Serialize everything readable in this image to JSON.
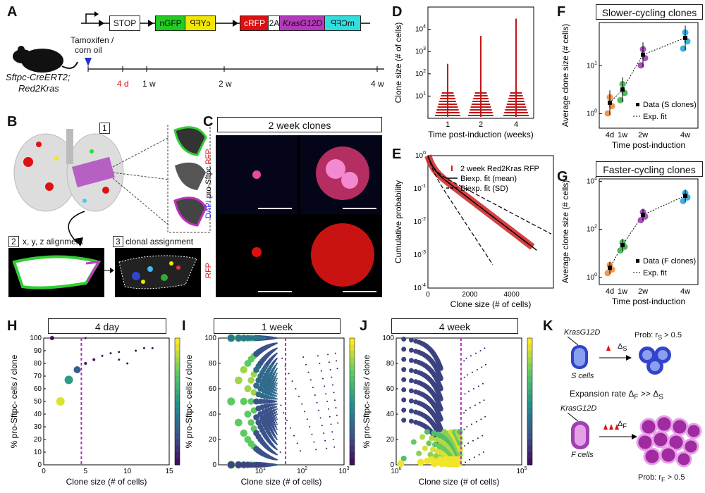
{
  "panel_letters": {
    "A": "A",
    "B": "B",
    "C": "C",
    "D": "D",
    "E": "E",
    "F": "F",
    "G": "G",
    "H": "H",
    "I": "I",
    "J": "J",
    "K": "K"
  },
  "panelA": {
    "construct": {
      "stop": "STOP",
      "ngfp": "nGFP",
      "cyfp": "cYFP",
      "crfp": "cRFP",
      "t2a": "2A",
      "kras": "KrasG12D",
      "mcfp": "mCFP"
    },
    "mouse_line1": "Sftpc-CreERT2;",
    "mouse_line2": "Red2Kras",
    "tamoxifen1": "Tamoxifen /",
    "tamoxifen2": "corn oil",
    "ticks": [
      "4 d",
      "1 w",
      "2 w",
      "4 w"
    ]
  },
  "panelB": {
    "step1": "1",
    "step2": "2",
    "step3": "3",
    "step2_label": "x, y, z alignment",
    "step3_label": "clonal assignment"
  },
  "panelC": {
    "title": "2 week clones",
    "ylabel_top_dapi": "DAPI",
    "ylabel_top_sftpc": "pro-Sftpc",
    "ylabel_top_rfp": "RFP",
    "ylabel_bottom": "RFP"
  },
  "colors": {
    "red": "#cc1f1f",
    "purple": "#9b2fae",
    "magenta": "#b040c0",
    "blue": "#2222cc",
    "green": "#22cc22",
    "yellow": "#f2e600",
    "cyan": "#33dddd",
    "darkred": "#c01515"
  },
  "chart_data": [
    {
      "id": "D",
      "type": "scatter",
      "title": "",
      "xlabel": "Time post-induction (weeks)",
      "ylabel": "Clone size (# of cells)",
      "categories": [
        "1",
        "2",
        "4"
      ],
      "yscale": "log",
      "ylim": [
        1,
        100000
      ],
      "ytick_labels": [
        "10^1",
        "10^2",
        "10^3",
        "10^4"
      ],
      "max_values": [
        280,
        5000,
        30000
      ]
    },
    {
      "id": "E",
      "type": "line",
      "xlabel": "Clone size (# of cells)",
      "ylabel": "Cumulative probability",
      "xlim": [
        0,
        6000
      ],
      "yscale": "log",
      "ylim": [
        0.0001,
        1
      ],
      "xtick_labels": [
        "0",
        "2000",
        "4000"
      ],
      "ytick_labels": [
        "10^-4",
        "10^-3",
        "10^-2",
        "10^-1",
        "10^0"
      ],
      "legend": [
        "2 week Red2Kras RFP",
        "Biexp. fit (mean)",
        "Biexp. fit (SD)"
      ]
    },
    {
      "id": "F",
      "type": "scatter",
      "title": "Slower-cycling clones",
      "xlabel": "Time post-induction",
      "ylabel": "Average clone size (# cells)",
      "categories": [
        "4d",
        "1w",
        "2w",
        "4w"
      ],
      "yscale": "log",
      "ytick_labels": [
        "10^0",
        "10^1"
      ],
      "means": [
        1.7,
        3.2,
        17,
        38
      ],
      "legend": [
        "Data (S clones)",
        "Exp. fit"
      ]
    },
    {
      "id": "G",
      "type": "scatter",
      "title": "Faster-cycling clones",
      "xlabel": "Time post-induction",
      "ylabel": "Average clone size (# cells)",
      "categories": [
        "4d",
        "1w",
        "2w",
        "4w"
      ],
      "yscale": "log",
      "ytick_labels": [
        "10^0",
        "10^2",
        "10^4"
      ],
      "means": [
        2.5,
        22,
        400,
        2500
      ],
      "legend": [
        "Data (F clones)",
        "Exp. fit"
      ]
    },
    {
      "id": "H",
      "type": "scatter",
      "title": "4 day",
      "xlabel": "Clone size (# of cells)",
      "ylabel": "% pro-Sftpc- cells / clone",
      "xlim": [
        0,
        15
      ],
      "ylim": [
        0,
        100
      ],
      "xtick_labels": [
        "0",
        "5",
        "10",
        "15"
      ],
      "ytick_labels": [
        "0",
        "10",
        "20",
        "30",
        "40",
        "50",
        "60",
        "70",
        "80",
        "90",
        "100"
      ],
      "threshold": 4.5
    },
    {
      "id": "I",
      "type": "scatter",
      "title": "1 week",
      "xlabel": "Clone size (# of cells)",
      "ylabel": "% pro-Sftpc- cells / clone",
      "xscale": "log",
      "xlim": [
        1,
        1000
      ],
      "ylim": [
        0,
        100
      ],
      "xtick_labels": [
        "10^1",
        "10^2",
        "10^3"
      ],
      "ytick_labels": [
        "0",
        "20",
        "40",
        "60",
        "80",
        "100"
      ],
      "threshold": 40
    },
    {
      "id": "J",
      "type": "scatter",
      "title": "4 week",
      "xlabel": "Clone size (# of cells)",
      "ylabel": "% pro-Sftpc- cells / clone",
      "xscale": "log",
      "xlim": [
        1,
        100000
      ],
      "ylim": [
        0,
        100
      ],
      "xtick_labels": [
        "10^0",
        "10^5"
      ],
      "ytick_labels": [
        "0",
        "20",
        "40",
        "60",
        "80",
        "100"
      ],
      "threshold": 380
    }
  ],
  "panelK": {
    "kras1": "KrasG12D",
    "s_cells": "S cells",
    "delta_s": "Δ",
    "delta_s_sub": "S",
    "prob_s": "Prob: r",
    "prob_s_sub": "S",
    "prob_s_tail": " > 0.5",
    "expansion": "Expansion rate Δ",
    "exp_sub_f": "F",
    "exp_mid": " >> Δ",
    "exp_sub_s": "S",
    "kras2": "KrasG12D",
    "f_cells": "F cells",
    "delta_f": "Δ",
    "delta_f_sub": "F",
    "prob_f": "Prob: r",
    "prob_f_sub": "F",
    "prob_f_tail": " > 0.5"
  }
}
